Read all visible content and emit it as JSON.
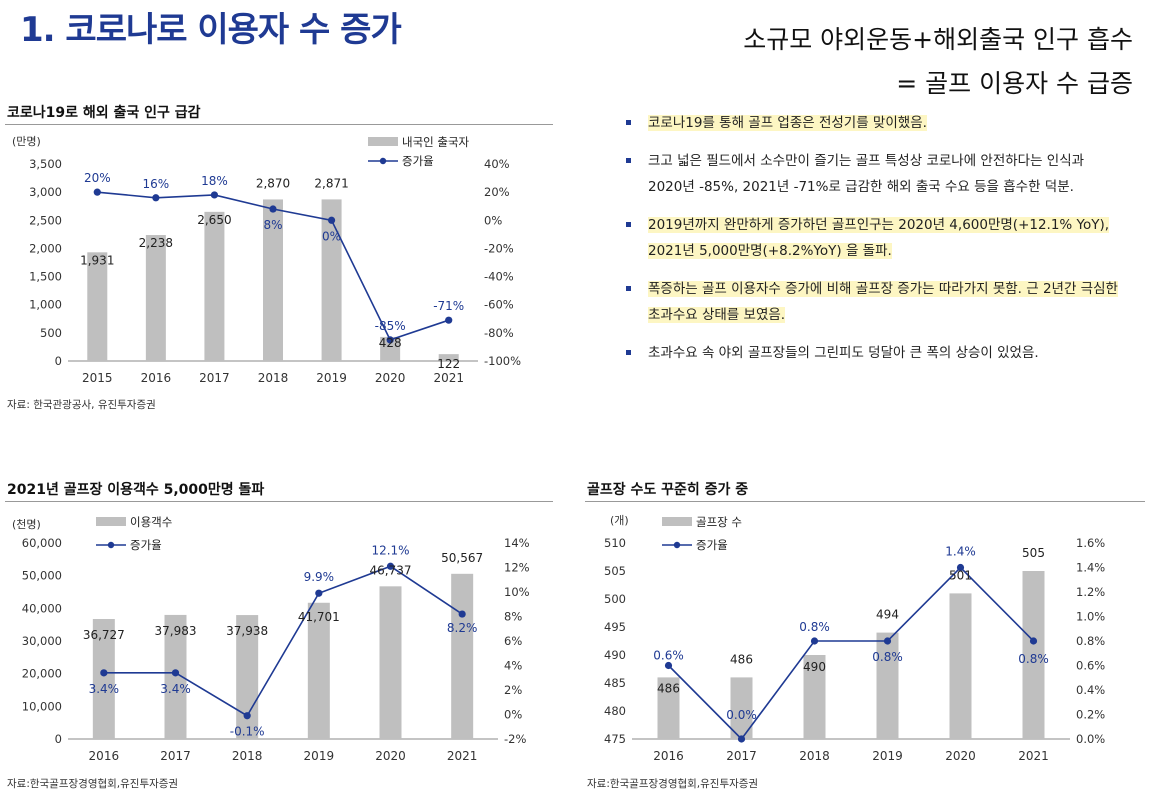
{
  "page": {
    "main_title": "1. 코로나로 이용자 수 증가",
    "subtitle_line1": "소규모 야외운동+해외출국 인구 흡수",
    "subtitle_line2": "= 골프 이용자 수 급증"
  },
  "bullets": [
    {
      "text": "코로나19를 통해 골프 업종은 전성기를 맞이했음.",
      "highlight": true
    },
    {
      "text": "크고 넓은 필드에서 소수만이 즐기는 골프 특성상 코로나에 안전하다는 인식과 2020년 -85%, 2021년 -71%로 급감한 해외 출국 수요 등을 흡수한 덕분.",
      "highlight": false
    },
    {
      "text": "2019년까지 완만하게 증가하던 골프인구는 2020년 4,600만명(+12.1% YoY), 2021년 5,000만명(+8.2%YoY) 을 돌파.",
      "highlight": true
    },
    {
      "text": "폭증하는 골프 이용자수 증가에 비해 골프장 증가는 따라가지 못함. 근 2년간 극심한 초과수요 상태를 보였음.",
      "highlight": true
    },
    {
      "text": "초과수요 속 야외 골프장들의 그린피도 덩달아 큰 폭의 상승이 있었음.",
      "highlight": false
    }
  ],
  "colors": {
    "bar": "#bfbfbf",
    "line": "#1f3a93",
    "title": "#1f3a93"
  },
  "chart_data": [
    {
      "id": "chart1",
      "type": "bar+line",
      "title": "코로나19로 해외 출국 인구 급감",
      "unit_label": "(만명)",
      "source": "자료: 한국관광공사, 유진투자증권",
      "categories": [
        "2015",
        "2016",
        "2017",
        "2018",
        "2019",
        "2020",
        "2021"
      ],
      "bar_series": {
        "name": "내국인 출국자",
        "values": [
          1931,
          2238,
          2650,
          2870,
          2871,
          428,
          122
        ],
        "labels": [
          "1,931",
          "2,238",
          "2,650",
          "2,870",
          "2,871",
          "428",
          "122"
        ]
      },
      "line_series": {
        "name": "증가율",
        "values": [
          20,
          16,
          18,
          8,
          0,
          -85,
          -71
        ],
        "labels": [
          "20%",
          "16%",
          "18%",
          "8%",
          "0%",
          "-85%",
          "-71%"
        ]
      },
      "y_left": {
        "min": 0,
        "max": 3500,
        "ticks": [
          "0",
          "500",
          "1,000",
          "1,500",
          "2,000",
          "2,500",
          "3,000",
          "3,500"
        ]
      },
      "y_right": {
        "min": -100,
        "max": 40,
        "ticks": [
          "-100%",
          "-80%",
          "-60%",
          "-40%",
          "-20%",
          "0%",
          "20%",
          "40%"
        ]
      },
      "legend_position": "top-right"
    },
    {
      "id": "chart2",
      "type": "bar+line",
      "title": "2021년 골프장 이용객수 5,000만명 돌파",
      "unit_label": "(천명)",
      "source": "자료:한국골프장경영협회,유진투자증권",
      "categories": [
        "2016",
        "2017",
        "2018",
        "2019",
        "2020",
        "2021"
      ],
      "bar_series": {
        "name": "이용객수",
        "values": [
          36727,
          37983,
          37938,
          41701,
          46737,
          50567
        ],
        "labels": [
          "36,727",
          "37,983",
          "37,938",
          "41,701",
          "46,737",
          "50,567"
        ]
      },
      "line_series": {
        "name": "증가율",
        "values": [
          3.4,
          3.4,
          -0.1,
          9.9,
          12.1,
          8.2
        ],
        "labels": [
          "3.4%",
          "3.4%",
          "-0.1%",
          "9.9%",
          "12.1%",
          "8.2%"
        ]
      },
      "y_left": {
        "min": 0,
        "max": 60000,
        "ticks": [
          "0",
          "10,000",
          "20,000",
          "30,000",
          "40,000",
          "50,000",
          "60,000"
        ]
      },
      "y_right": {
        "min": -2,
        "max": 14,
        "ticks": [
          "-2%",
          "0%",
          "2%",
          "4%",
          "6%",
          "8%",
          "10%",
          "12%",
          "14%"
        ]
      },
      "legend_position": "top-left"
    },
    {
      "id": "chart3",
      "type": "bar+line",
      "title": "골프장 수도 꾸준히 증가 중",
      "unit_label": "(개)",
      "source": "자료:한국골프장경영협회,유진투자증권",
      "categories": [
        "2016",
        "2017",
        "2018",
        "2019",
        "2020",
        "2021"
      ],
      "bar_series": {
        "name": "골프장 수",
        "values": [
          486,
          486,
          490,
          494,
          501,
          505
        ],
        "labels": [
          "486",
          "486",
          "490",
          "494",
          "501",
          "505"
        ]
      },
      "line_series": {
        "name": "증가율",
        "values": [
          0.6,
          0.0,
          0.8,
          0.8,
          1.4,
          0.8
        ],
        "labels": [
          "0.6%",
          "0.0%",
          "0.8%",
          "0.8%",
          "1.4%",
          "0.8%"
        ]
      },
      "y_left": {
        "min": 475,
        "max": 510,
        "ticks": [
          "475",
          "480",
          "485",
          "490",
          "495",
          "500",
          "505",
          "510"
        ]
      },
      "y_right": {
        "min": 0,
        "max": 1.6,
        "ticks": [
          "0.0%",
          "0.2%",
          "0.4%",
          "0.6%",
          "0.8%",
          "1.0%",
          "1.2%",
          "1.4%",
          "1.6%"
        ]
      },
      "legend_position": "top-left"
    }
  ]
}
